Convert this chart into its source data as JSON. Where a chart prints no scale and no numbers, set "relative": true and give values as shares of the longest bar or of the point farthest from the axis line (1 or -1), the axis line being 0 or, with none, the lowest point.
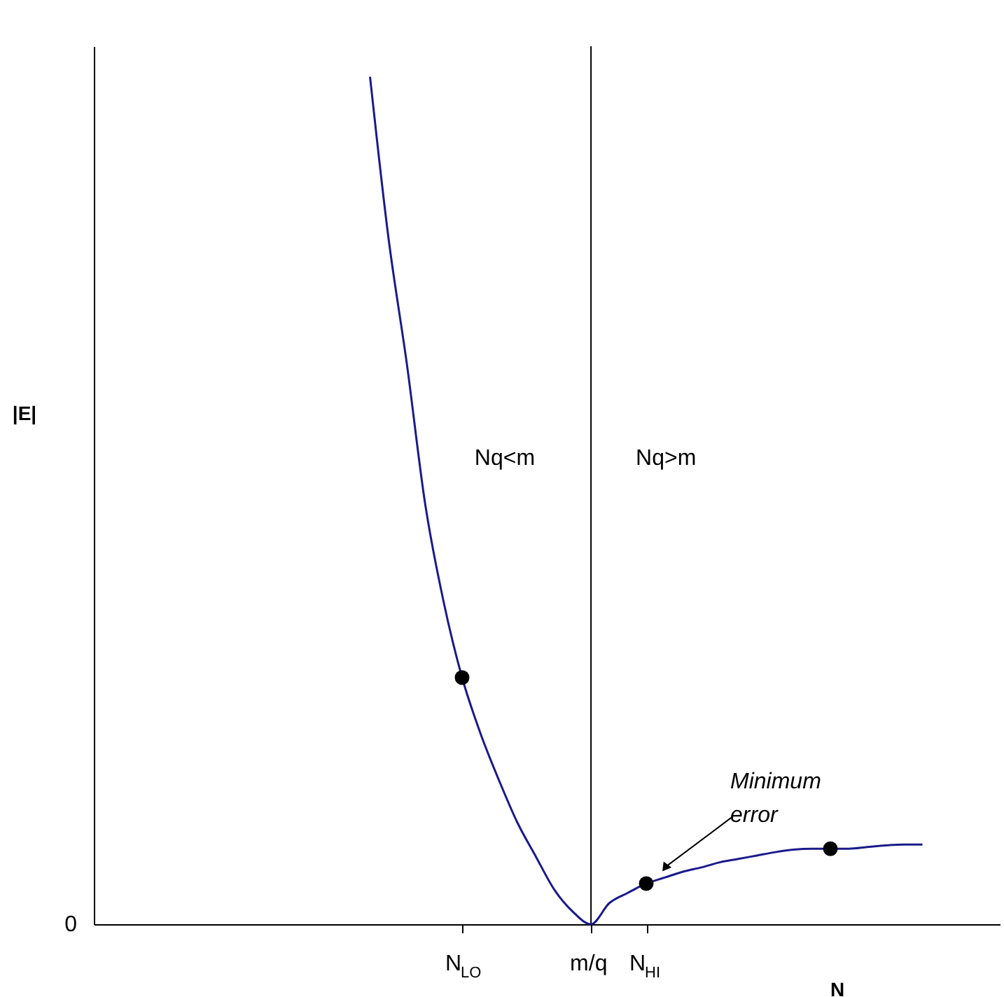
{
  "chart_data": {
    "type": "line",
    "relative": true,
    "xlabel": "N",
    "ylabel": "|E|",
    "categories": [
      null,
      null,
      null,
      null,
      null,
      null,
      null,
      null,
      null,
      null,
      null,
      null,
      null,
      null,
      null,
      null,
      null,
      null,
      null,
      null,
      "N$_{LO}$",
      null,
      null,
      null,
      null,
      null,
      null,
      "m/q",
      null,
      null,
      "N$_{HI}$",
      null,
      null,
      null,
      null,
      null,
      null,
      null,
      null,
      null,
      null,
      null,
      null,
      null,
      null,
      null,
      null,
      null,
      null,
      null
    ],
    "ref_lines": [
      {
        "axis": "x",
        "value": "m/q",
        "color": "#000000"
      }
    ],
    "series": [
      {
        "color": "#1a1a8c",
        "values": [
          null,
          null,
          null,
          null,
          null,
          null,
          null,
          null,
          null,
          null,
          null,
          null,
          null,
          null,
          null,
          1,
          0.81,
          0.661,
          0.495,
          0.38,
          0.291,
          0.225,
          0.17,
          0.12,
          0.08,
          0.041,
          0.015,
          0,
          0.025,
          0.037,
          0.048,
          0.055,
          0.062,
          0.067,
          0.073,
          0.077,
          0.081,
          0.085,
          0.088,
          0.089,
          0.089,
          0.089,
          0.091,
          0.093,
          0.094,
          0.094,
          null,
          null,
          null,
          null
        ]
      },
      {
        "type": "scatter",
        "color": "#000000",
        "values": [
          null,
          null,
          null,
          null,
          null,
          null,
          null,
          null,
          null,
          null,
          null,
          null,
          null,
          null,
          null,
          null,
          null,
          null,
          null,
          null,
          0.291,
          null,
          null,
          null,
          null,
          null,
          null,
          null,
          null,
          null,
          0.048,
          null,
          null,
          null,
          null,
          null,
          null,
          null,
          null,
          null,
          0.089,
          null,
          null,
          null,
          null,
          null,
          null,
          null,
          null,
          null
        ]
      }
    ],
    "annotations": [
      "0",
      "Nq<m",
      "Nq>m",
      "Minimum error"
    ]
  }
}
